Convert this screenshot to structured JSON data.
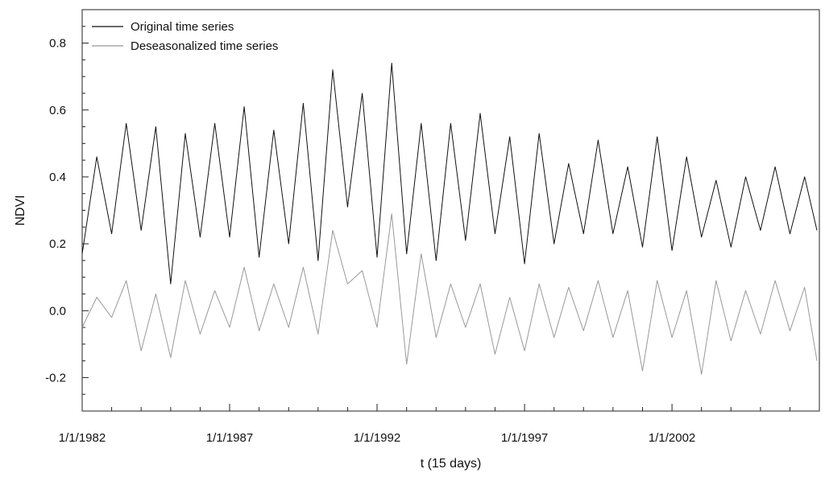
{
  "chart_data": {
    "type": "line",
    "title": "",
    "xlabel": "t (15 days)",
    "ylabel": "NDVI",
    "ylim": [
      -0.3,
      0.9
    ],
    "xlim": [
      "1/1/1982",
      "12/31/2006"
    ],
    "y_ticks": [
      -0.2,
      0.0,
      0.2,
      0.4,
      0.6,
      0.8
    ],
    "y_tick_labels": [
      "-0.2",
      "0.0",
      "0.2",
      "0.4",
      "0.6",
      "0.8"
    ],
    "x_ticks": [
      "1/1/1982",
      "1/1/1987",
      "1/1/1992",
      "1/1/1997",
      "1/1/2002"
    ],
    "grid": false,
    "legend_position": "top-left",
    "series": [
      {
        "name": "Original time series",
        "color": "#111111",
        "x": [
          "1982-01",
          "1982-07",
          "1983-01",
          "1983-07",
          "1984-01",
          "1984-07",
          "1985-01",
          "1985-07",
          "1986-01",
          "1986-07",
          "1987-01",
          "1987-07",
          "1988-01",
          "1988-07",
          "1989-01",
          "1989-07",
          "1990-01",
          "1990-07",
          "1991-01",
          "1991-07",
          "1992-01",
          "1992-07",
          "1993-01",
          "1993-07",
          "1994-01",
          "1994-07",
          "1995-01",
          "1995-07",
          "1996-01",
          "1996-07",
          "1997-01",
          "1997-07",
          "1998-01",
          "1998-07",
          "1999-01",
          "1999-07",
          "2000-01",
          "2000-07",
          "2001-01",
          "2001-07",
          "2002-01",
          "2002-07",
          "2003-01",
          "2003-07",
          "2004-01",
          "2004-07",
          "2005-01",
          "2005-07",
          "2006-01",
          "2006-07",
          "2006-12"
        ],
        "values": [
          0.17,
          0.46,
          0.23,
          0.56,
          0.24,
          0.55,
          0.08,
          0.53,
          0.22,
          0.56,
          0.22,
          0.61,
          0.16,
          0.54,
          0.2,
          0.62,
          0.15,
          0.72,
          0.31,
          0.65,
          0.16,
          0.74,
          0.17,
          0.56,
          0.15,
          0.56,
          0.21,
          0.59,
          0.23,
          0.52,
          0.14,
          0.53,
          0.2,
          0.44,
          0.23,
          0.51,
          0.23,
          0.43,
          0.19,
          0.52,
          0.18,
          0.46,
          0.22,
          0.39,
          0.19,
          0.4,
          0.24,
          0.43,
          0.23,
          0.4,
          0.24
        ]
      },
      {
        "name": "Deseasonalized time series",
        "color": "#999999",
        "x": [
          "1982-01",
          "1982-07",
          "1983-01",
          "1983-07",
          "1984-01",
          "1984-07",
          "1985-01",
          "1985-07",
          "1986-01",
          "1986-07",
          "1987-01",
          "1987-07",
          "1988-01",
          "1988-07",
          "1989-01",
          "1989-07",
          "1990-01",
          "1990-07",
          "1991-01",
          "1991-07",
          "1992-01",
          "1992-07",
          "1993-01",
          "1993-07",
          "1994-01",
          "1994-07",
          "1995-01",
          "1995-07",
          "1996-01",
          "1996-07",
          "1997-01",
          "1997-07",
          "1998-01",
          "1998-07",
          "1999-01",
          "1999-07",
          "2000-01",
          "2000-07",
          "2001-01",
          "2001-07",
          "2002-01",
          "2002-07",
          "2003-01",
          "2003-07",
          "2004-01",
          "2004-07",
          "2005-01",
          "2005-07",
          "2006-01",
          "2006-07",
          "2006-12"
        ],
        "values": [
          -0.05,
          0.04,
          -0.02,
          0.09,
          -0.12,
          0.05,
          -0.14,
          0.09,
          -0.07,
          0.06,
          -0.05,
          0.13,
          -0.06,
          0.08,
          -0.05,
          0.13,
          -0.07,
          0.24,
          0.08,
          0.12,
          -0.05,
          0.29,
          -0.16,
          0.17,
          -0.08,
          0.08,
          -0.05,
          0.08,
          -0.13,
          0.04,
          -0.12,
          0.08,
          -0.08,
          0.07,
          -0.06,
          0.09,
          -0.08,
          0.06,
          -0.18,
          0.09,
          -0.08,
          0.06,
          -0.19,
          0.09,
          -0.09,
          0.06,
          -0.07,
          0.09,
          -0.06,
          0.07,
          -0.15
        ]
      }
    ]
  }
}
